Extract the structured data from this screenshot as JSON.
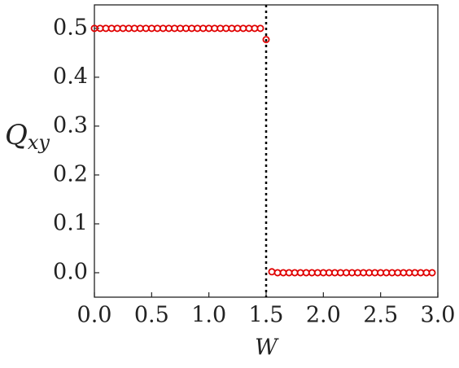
{
  "chart_data": {
    "type": "scatter",
    "xlabel": "W",
    "ylabel": {
      "main": "Q",
      "sub": "xy"
    },
    "x": [
      0,
      0.05,
      0.1,
      0.15,
      0.2,
      0.25,
      0.3,
      0.35,
      0.4,
      0.45,
      0.5,
      0.55,
      0.6,
      0.65,
      0.7,
      0.75,
      0.8,
      0.85,
      0.9,
      0.95,
      1,
      1.05,
      1.1,
      1.15,
      1.2,
      1.25,
      1.3,
      1.35,
      1.4,
      1.45,
      1.5,
      1.55,
      1.6,
      1.65,
      1.7,
      1.75,
      1.8,
      1.85,
      1.9,
      1.95,
      2,
      2.05,
      2.1,
      2.15,
      2.2,
      2.25,
      2.3,
      2.35,
      2.4,
      2.45,
      2.5,
      2.55,
      2.6,
      2.65,
      2.7,
      2.75,
      2.8,
      2.85,
      2.9,
      2.95
    ],
    "values": [
      0.5,
      0.5,
      0.5,
      0.5,
      0.5,
      0.5,
      0.5,
      0.5,
      0.5,
      0.5,
      0.5,
      0.5,
      0.5,
      0.5,
      0.5,
      0.5,
      0.5,
      0.5,
      0.5,
      0.5,
      0.5,
      0.5,
      0.5,
      0.5,
      0.5,
      0.5,
      0.5,
      0.5,
      0.5,
      0.5,
      0.477,
      0.002,
      0,
      0,
      0,
      0,
      0,
      0,
      0,
      0,
      0,
      0,
      0,
      0,
      0,
      0,
      0,
      0,
      0,
      0,
      0,
      0,
      0,
      0,
      0,
      0,
      0,
      0,
      0,
      0
    ],
    "color": "#e00000",
    "vline": 1.5,
    "xlim": [
      0,
      3
    ],
    "ylim": [
      -0.05,
      0.548
    ],
    "xticks": [
      {
        "value": 0,
        "label": "0.0"
      },
      {
        "value": 0.5,
        "label": "0.5"
      },
      {
        "value": 1,
        "label": "1.0"
      },
      {
        "value": 1.5,
        "label": "1.5"
      },
      {
        "value": 2,
        "label": "2.0"
      },
      {
        "value": 2.5,
        "label": "2.5"
      },
      {
        "value": 3,
        "label": "3.0"
      }
    ],
    "yticks": [
      {
        "value": 0,
        "label": "0.0"
      },
      0.1,
      0.2,
      0.3,
      0.4,
      0.5
    ]
  }
}
